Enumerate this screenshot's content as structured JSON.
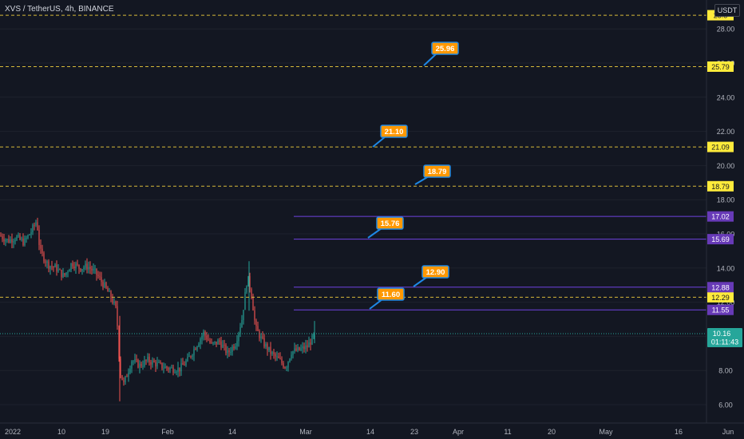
{
  "header": {
    "symbol": "XVS / TetherUS, 4h, BINANCE",
    "currency_button": "USDT"
  },
  "colors": {
    "background": "#131722",
    "up": "#26a69a",
    "down": "#ef5350",
    "yellow_line": "#d6b93a",
    "purple_line": "#6f42e0",
    "callout": "#ff9800",
    "callout_border": "#1e88e5"
  },
  "y_axis": {
    "ticks": [
      "6.00",
      "8.00",
      "10.00",
      "12.00",
      "14.00",
      "16.00",
      "18.00",
      "20.00",
      "22.00",
      "24.00",
      "26.00",
      "28.00"
    ]
  },
  "x_axis": {
    "ticks": [
      "2022",
      "10",
      "19",
      "Feb",
      "14",
      "Mar",
      "14",
      "23",
      "Apr",
      "11",
      "20",
      "May",
      "16",
      "Jun"
    ]
  },
  "yellow_levels": [
    {
      "value": 28.8,
      "label": "28.8"
    },
    {
      "value": 25.79,
      "label": "25.79"
    },
    {
      "value": 21.09,
      "label": "21.09"
    },
    {
      "value": 18.79,
      "label": "18.79"
    },
    {
      "value": 12.29,
      "label": "12.29"
    }
  ],
  "purple_levels": [
    {
      "value": 17.02,
      "label": "17.02"
    },
    {
      "value": 15.69,
      "label": "15.69"
    },
    {
      "value": 12.88,
      "label": "12.88"
    },
    {
      "value": 11.55,
      "label": "11.55"
    }
  ],
  "callouts": [
    {
      "label": "25.96",
      "value": 25.96
    },
    {
      "label": "21.10",
      "value": 21.1
    },
    {
      "label": "18.79",
      "value": 18.79
    },
    {
      "label": "15.76",
      "value": 15.76
    },
    {
      "label": "12.90",
      "value": 12.9
    },
    {
      "label": "11.60",
      "value": 11.6
    }
  ],
  "current_price": {
    "value": 10.16,
    "label": "10.16",
    "countdown": "01:11:43"
  }
}
